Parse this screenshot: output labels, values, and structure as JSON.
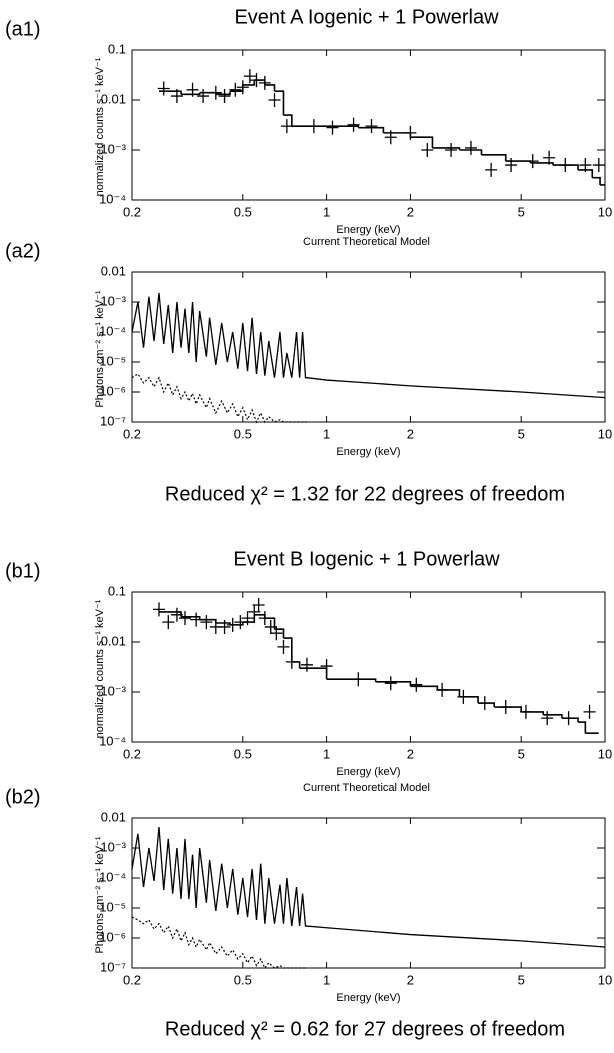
{
  "chart_data": [
    {
      "type": "step",
      "panel_label": "(a1)",
      "title": "Event A Iogenic + 1 Powerlaw",
      "xlabel": "Energy (keV)",
      "ylabel": "normalized counts s⁻¹ keV⁻¹",
      "xlog": true,
      "ylog": true,
      "xlim": [
        0.2,
        10
      ],
      "ylim": [
        0.0001,
        0.1
      ],
      "xticks": [
        0.2,
        0.5,
        1,
        2,
        5,
        10
      ],
      "yticks": [
        0.1,
        0.01,
        {
          "value": 0.001,
          "label": "10⁻³"
        },
        {
          "value": 0.0001,
          "label": "10⁻⁴"
        }
      ],
      "series": [
        {
          "style": "cross",
          "color": "#000000",
          "x": [
            0.26,
            0.29,
            0.33,
            0.36,
            0.4,
            0.43,
            0.47,
            0.5,
            0.53,
            0.56,
            0.6,
            0.65,
            0.72,
            0.9,
            1.05,
            1.25,
            1.45,
            1.7,
            2.0,
            2.3,
            2.8,
            3.3,
            3.9,
            4.6,
            5.5,
            6.3,
            7.2,
            8.5,
            9.5
          ],
          "values": [
            0.017,
            0.012,
            0.016,
            0.012,
            0.014,
            0.012,
            0.016,
            0.018,
            0.03,
            0.025,
            0.022,
            0.01,
            0.003,
            0.003,
            0.0028,
            0.0032,
            0.003,
            0.0018,
            0.0022,
            0.001,
            0.001,
            0.0011,
            0.0004,
            0.0005,
            0.0006,
            0.0007,
            0.0005,
            0.0005,
            0.0005
          ]
        },
        {
          "style": "step",
          "color": "#000000",
          "x": [
            0.25,
            0.3,
            0.35,
            0.4,
            0.45,
            0.5,
            0.55,
            0.6,
            0.65,
            0.7,
            0.75,
            1.0,
            1.3,
            1.6,
            2.0,
            2.4,
            3.0,
            3.6,
            4.4,
            5.4,
            6.5,
            8.0,
            9.0,
            9.6,
            10
          ],
          "values": [
            0.015,
            0.013,
            0.014,
            0.013,
            0.015,
            0.02,
            0.025,
            0.02,
            0.015,
            0.005,
            0.003,
            0.003,
            0.0028,
            0.0022,
            0.0018,
            0.0011,
            0.001,
            0.0008,
            0.0006,
            0.00055,
            0.0005,
            0.0004,
            0.00028,
            0.0002,
            0.0002
          ]
        }
      ]
    },
    {
      "type": "line",
      "panel_label": "(a2)",
      "title": "Current Theoretical Model",
      "xlabel": "Energy (keV)",
      "ylabel": "Photons cm⁻² s⁻¹ keV⁻¹",
      "annotation": "Reduced χ² = 1.32 for 22 degrees of freedom",
      "xlog": true,
      "ylog": true,
      "xlim": [
        0.2,
        10
      ],
      "ylim": [
        1e-07,
        0.01
      ],
      "xticks": [
        0.2,
        0.5,
        1,
        2,
        5,
        10
      ],
      "yticks": [
        0.01,
        {
          "value": 0.001,
          "label": "10⁻³"
        },
        {
          "value": 0.0001,
          "label": "10⁻⁴"
        },
        {
          "value": 1e-05,
          "label": "10⁻⁵"
        },
        {
          "value": 1e-06,
          "label": "10⁻⁶"
        },
        {
          "value": 1e-07,
          "label": "10⁻⁷"
        }
      ],
      "x": [
        0.2,
        0.21,
        0.22,
        0.23,
        0.24,
        0.25,
        0.26,
        0.27,
        0.28,
        0.29,
        0.3,
        0.31,
        0.32,
        0.33,
        0.34,
        0.35,
        0.37,
        0.38,
        0.4,
        0.42,
        0.44,
        0.46,
        0.48,
        0.5,
        0.52,
        0.54,
        0.56,
        0.58,
        0.6,
        0.62,
        0.65,
        0.68,
        0.7,
        0.72,
        0.75,
        0.78,
        0.8,
        0.82,
        0.84,
        0.85,
        1,
        2,
        5,
        10
      ],
      "series": [
        {
          "style": "dashed",
          "color": "#000000",
          "values": [
            3e-06,
            4e-06,
            2e-06,
            3e-06,
            1.5e-06,
            3e-06,
            1e-06,
            2e-06,
            8e-07,
            1.5e-06,
            6e-07,
            1e-06,
            5e-07,
            9e-07,
            4e-07,
            8e-07,
            3e-07,
            6e-07,
            2e-07,
            5e-07,
            2e-07,
            4e-07,
            1.5e-07,
            3e-07,
            1.2e-07,
            2.5e-07,
            1e-07,
            2e-07,
            1e-07,
            1.5e-07,
            1e-07,
            1.2e-07,
            1e-07,
            1e-07,
            1e-07,
            1e-07,
            1e-07,
            1e-07,
            1e-07,
            1e-07,
            null,
            null,
            null,
            null
          ]
        },
        {
          "style": "solid",
          "color": "#000000",
          "values": [
            0.0001,
            0.001,
            3e-05,
            0.0015,
            5e-05,
            0.002,
            4e-05,
            0.0008,
            2e-05,
            0.001,
            3e-05,
            0.0006,
            2e-05,
            0.001,
            1e-05,
            0.0005,
            1.5e-05,
            0.0003,
            8e-06,
            0.0002,
            1e-05,
            0.0001,
            6e-06,
            0.0002,
            5e-06,
            0.0003,
            4e-06,
            0.0001,
            3.5e-06,
            5e-05,
            3e-06,
            0.0001,
            3e-06,
            2e-05,
            3e-06,
            0.0001,
            3e-06,
            0.0001,
            3e-06,
            3e-06,
            2.5e-06,
            1.6e-06,
            1e-06,
            6.5e-07
          ]
        }
      ]
    },
    {
      "type": "step",
      "panel_label": "(b1)",
      "title": "Event B Iogenic + 1 Powerlaw",
      "xlabel": "Energy (keV)",
      "ylabel": "normalized counts s⁻¹ keV⁻¹",
      "xlog": true,
      "ylog": true,
      "xlim": [
        0.2,
        10
      ],
      "ylim": [
        0.0001,
        0.1
      ],
      "xticks": [
        0.2,
        0.5,
        1,
        2,
        5,
        10
      ],
      "yticks": [
        0.1,
        0.01,
        {
          "value": 0.001,
          "label": "10⁻³"
        },
        {
          "value": 0.0001,
          "label": "10⁻⁴"
        }
      ],
      "series": [
        {
          "style": "cross",
          "color": "#000000",
          "x": [
            0.25,
            0.27,
            0.29,
            0.31,
            0.34,
            0.37,
            0.4,
            0.43,
            0.46,
            0.49,
            0.52,
            0.55,
            0.57,
            0.6,
            0.63,
            0.66,
            0.7,
            0.75,
            0.85,
            1.0,
            1.3,
            1.7,
            2.1,
            2.6,
            3.1,
            3.7,
            4.4,
            5.2,
            6.2,
            7.4,
            8.8
          ],
          "values": [
            0.045,
            0.025,
            0.035,
            0.03,
            0.028,
            0.025,
            0.02,
            0.02,
            0.022,
            0.025,
            0.03,
            0.04,
            0.055,
            0.03,
            0.02,
            0.015,
            0.008,
            0.004,
            0.0035,
            0.0033,
            0.0018,
            0.0015,
            0.0014,
            0.0011,
            0.0008,
            0.0006,
            0.0005,
            0.0004,
            0.0003,
            0.0003,
            0.0004
          ]
        },
        {
          "style": "step",
          "color": "#000000",
          "x": [
            0.25,
            0.3,
            0.35,
            0.4,
            0.45,
            0.5,
            0.55,
            0.6,
            0.65,
            0.7,
            0.75,
            0.8,
            1.0,
            1.5,
            2.0,
            2.5,
            3.0,
            3.5,
            4.0,
            5.0,
            6.0,
            7.0,
            8.0,
            8.5,
            9.5
          ],
          "values": [
            0.04,
            0.032,
            0.028,
            0.024,
            0.022,
            0.025,
            0.035,
            0.03,
            0.018,
            0.012,
            0.004,
            0.003,
            0.0018,
            0.0016,
            0.0013,
            0.0011,
            0.0008,
            0.0006,
            0.0005,
            0.0004,
            0.00035,
            0.0003,
            0.00025,
            0.00015,
            0.00015
          ]
        }
      ]
    },
    {
      "type": "line",
      "panel_label": "(b2)",
      "title": "Current Theoretical Model",
      "xlabel": "Energy (keV)",
      "ylabel": "Photons cm⁻² s⁻¹ keV⁻¹",
      "annotation": "Reduced χ² = 0.62 for 27 degrees of freedom",
      "xlog": true,
      "ylog": true,
      "xlim": [
        0.2,
        10
      ],
      "ylim": [
        1e-07,
        0.01
      ],
      "xticks": [
        0.2,
        0.5,
        1,
        2,
        5,
        10
      ],
      "yticks": [
        0.01,
        {
          "value": 0.001,
          "label": "10⁻³"
        },
        {
          "value": 0.0001,
          "label": "10⁻⁴"
        },
        {
          "value": 1e-05,
          "label": "10⁻⁵"
        },
        {
          "value": 1e-06,
          "label": "10⁻⁶"
        },
        {
          "value": 1e-07,
          "label": "10⁻⁷"
        }
      ],
      "x": [
        0.2,
        0.21,
        0.22,
        0.23,
        0.24,
        0.25,
        0.26,
        0.27,
        0.28,
        0.29,
        0.3,
        0.31,
        0.32,
        0.33,
        0.34,
        0.35,
        0.37,
        0.38,
        0.4,
        0.42,
        0.44,
        0.46,
        0.48,
        0.5,
        0.52,
        0.54,
        0.56,
        0.58,
        0.6,
        0.62,
        0.65,
        0.68,
        0.7,
        0.72,
        0.75,
        0.78,
        0.8,
        0.82,
        0.84,
        0.85,
        1,
        2,
        5,
        10
      ],
      "series": [
        {
          "style": "dashed",
          "color": "#000000",
          "values": [
            5e-06,
            4e-06,
            3e-06,
            4e-06,
            2e-06,
            3e-06,
            1.5e-06,
            2.5e-06,
            1e-06,
            2e-06,
            8e-07,
            1.5e-06,
            6e-07,
            1e-06,
            5e-07,
            9e-07,
            4e-07,
            7e-07,
            3e-07,
            5e-07,
            2.5e-07,
            4e-07,
            2e-07,
            3e-07,
            1.5e-07,
            2.5e-07,
            1.2e-07,
            2e-07,
            1e-07,
            1.5e-07,
            1e-07,
            1.2e-07,
            1e-07,
            1e-07,
            1e-07,
            1e-07,
            1e-07,
            1e-07,
            1e-07,
            1e-07,
            null,
            null,
            null,
            null
          ]
        },
        {
          "style": "solid",
          "color": "#000000",
          "values": [
            0.0002,
            0.003,
            5e-05,
            0.001,
            8e-05,
            0.005,
            4e-05,
            0.002,
            3e-05,
            0.001,
            2e-05,
            0.002,
            2e-05,
            0.0006,
            1e-05,
            0.001,
            1.5e-05,
            0.0004,
            8e-06,
            0.0003,
            1e-05,
            0.0002,
            6e-06,
            0.0001,
            5e-06,
            0.0002,
            4e-06,
            0.0003,
            3e-06,
            0.0001,
            3e-06,
            6e-05,
            3e-06,
            0.0001,
            2.5e-06,
            5e-05,
            2.5e-06,
            3e-05,
            2.5e-06,
            2.5e-06,
            2.2e-06,
            1.3e-06,
            8e-07,
            5e-07
          ]
        }
      ]
    }
  ]
}
